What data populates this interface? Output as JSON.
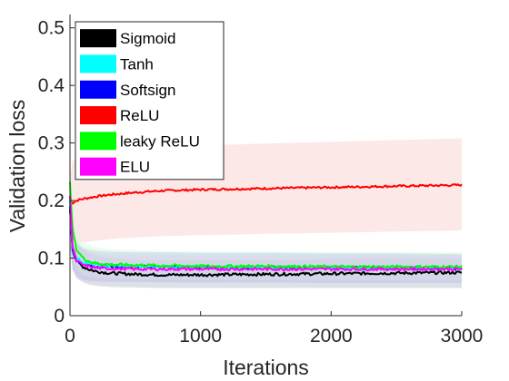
{
  "chart_data": {
    "type": "line",
    "xlabel": "Iterations",
    "ylabel": "Validation loss",
    "xlim": [
      0,
      3000
    ],
    "ylim": [
      0,
      0.52
    ],
    "xticks": [
      0,
      1000,
      2000,
      3000
    ],
    "xtick_labels": [
      "0",
      "1000",
      "2000",
      "3000"
    ],
    "yticks": [
      0,
      0.1,
      0.2,
      0.3,
      0.4,
      0.5
    ],
    "ytick_labels": [
      "0",
      "0.1",
      "0.2",
      "0.3",
      "0.4",
      "0.5"
    ],
    "grid": false,
    "legend_position": "top-left",
    "series": [
      {
        "name": "Sigmoid",
        "color": "#000000",
        "band_color": "#9aa8b8",
        "x": [
          0,
          20,
          50,
          100,
          150,
          200,
          300,
          500,
          700,
          1000,
          1500,
          2000,
          2500,
          3000
        ],
        "y": [
          0.185,
          0.115,
          0.095,
          0.085,
          0.08,
          0.077,
          0.074,
          0.072,
          0.071,
          0.071,
          0.072,
          0.073,
          0.074,
          0.075
        ],
        "lower": [
          0.12,
          0.08,
          0.065,
          0.058,
          0.054,
          0.052,
          0.05,
          0.049,
          0.048,
          0.048,
          0.048,
          0.048,
          0.048,
          0.048
        ],
        "upper": [
          0.23,
          0.16,
          0.13,
          0.115,
          0.108,
          0.104,
          0.1,
          0.097,
          0.096,
          0.096,
          0.097,
          0.098,
          0.099,
          0.1
        ]
      },
      {
        "name": "Tanh",
        "color": "#00ffff",
        "band_color": "#bfeff0",
        "x": [
          0,
          20,
          50,
          100,
          150,
          200,
          300,
          500,
          700,
          1000,
          1500,
          2000,
          2500,
          3000
        ],
        "y": [
          0.2,
          0.12,
          0.1,
          0.093,
          0.09,
          0.088,
          0.087,
          0.086,
          0.085,
          0.085,
          0.084,
          0.084,
          0.083,
          0.083
        ],
        "lower": [
          0.14,
          0.085,
          0.07,
          0.065,
          0.063,
          0.062,
          0.06,
          0.06,
          0.059,
          0.059,
          0.058,
          0.058,
          0.058,
          0.058
        ],
        "upper": [
          0.24,
          0.155,
          0.13,
          0.12,
          0.117,
          0.115,
          0.113,
          0.112,
          0.111,
          0.11,
          0.11,
          0.109,
          0.109,
          0.108
        ]
      },
      {
        "name": "Softsign",
        "color": "#0000ff",
        "band_color": "#9fa8e0",
        "x": [
          0,
          20,
          50,
          100,
          150,
          200,
          300,
          500,
          700,
          1000,
          1500,
          2000,
          2500,
          3000
        ],
        "y": [
          0.19,
          0.115,
          0.097,
          0.09,
          0.087,
          0.086,
          0.086,
          0.085,
          0.085,
          0.084,
          0.084,
          0.083,
          0.083,
          0.082
        ],
        "lower": [
          0.13,
          0.08,
          0.068,
          0.062,
          0.06,
          0.06,
          0.059,
          0.059,
          0.058,
          0.058,
          0.058,
          0.057,
          0.057,
          0.057
        ],
        "upper": [
          0.23,
          0.15,
          0.125,
          0.117,
          0.114,
          0.112,
          0.111,
          0.11,
          0.11,
          0.109,
          0.109,
          0.108,
          0.108,
          0.107
        ]
      },
      {
        "name": "ReLU",
        "color": "#ff0000",
        "band_color": "#fde4e4",
        "x": [
          0,
          20,
          50,
          100,
          200,
          300,
          500,
          700,
          1000,
          1500,
          2000,
          2500,
          3000
        ],
        "y": [
          0.2,
          0.196,
          0.2,
          0.203,
          0.207,
          0.21,
          0.214,
          0.217,
          0.219,
          0.221,
          0.223,
          0.225,
          0.227
        ],
        "lower": [
          0.17,
          0.12,
          0.125,
          0.128,
          0.13,
          0.133,
          0.136,
          0.138,
          0.14,
          0.142,
          0.144,
          0.146,
          0.148
        ],
        "upper": [
          0.24,
          0.27,
          0.275,
          0.28,
          0.284,
          0.287,
          0.29,
          0.293,
          0.296,
          0.299,
          0.302,
          0.305,
          0.308
        ]
      },
      {
        "name": "leaky ReLU",
        "color": "#00ff00",
        "band_color": "#d6f5d6",
        "x": [
          0,
          20,
          50,
          100,
          150,
          200,
          300,
          500,
          700,
          1000,
          1500,
          2000,
          2500,
          3000
        ],
        "y": [
          0.23,
          0.15,
          0.115,
          0.1,
          0.094,
          0.091,
          0.089,
          0.088,
          0.087,
          0.086,
          0.086,
          0.085,
          0.085,
          0.085
        ],
        "lower": [
          0.15,
          0.1,
          0.08,
          0.07,
          0.067,
          0.065,
          0.064,
          0.063,
          0.063,
          0.062,
          0.062,
          0.062,
          0.061,
          0.061
        ],
        "upper": [
          0.27,
          0.2,
          0.15,
          0.13,
          0.123,
          0.119,
          0.116,
          0.114,
          0.113,
          0.112,
          0.112,
          0.111,
          0.111,
          0.111
        ]
      },
      {
        "name": "ELU",
        "color": "#ff00ff",
        "band_color": "#e8c8f0",
        "x": [
          0,
          20,
          50,
          100,
          150,
          200,
          300,
          500,
          700,
          1000,
          1500,
          2000,
          2500,
          3000
        ],
        "y": [
          0.21,
          0.12,
          0.095,
          0.088,
          0.085,
          0.083,
          0.082,
          0.081,
          0.081,
          0.081,
          0.081,
          0.081,
          0.081,
          0.081
        ],
        "lower": [
          0.14,
          0.085,
          0.068,
          0.062,
          0.06,
          0.059,
          0.058,
          0.058,
          0.058,
          0.058,
          0.058,
          0.058,
          0.058,
          0.058
        ],
        "upper": [
          0.25,
          0.155,
          0.122,
          0.114,
          0.11,
          0.108,
          0.106,
          0.105,
          0.105,
          0.105,
          0.105,
          0.105,
          0.105,
          0.105
        ]
      }
    ]
  }
}
